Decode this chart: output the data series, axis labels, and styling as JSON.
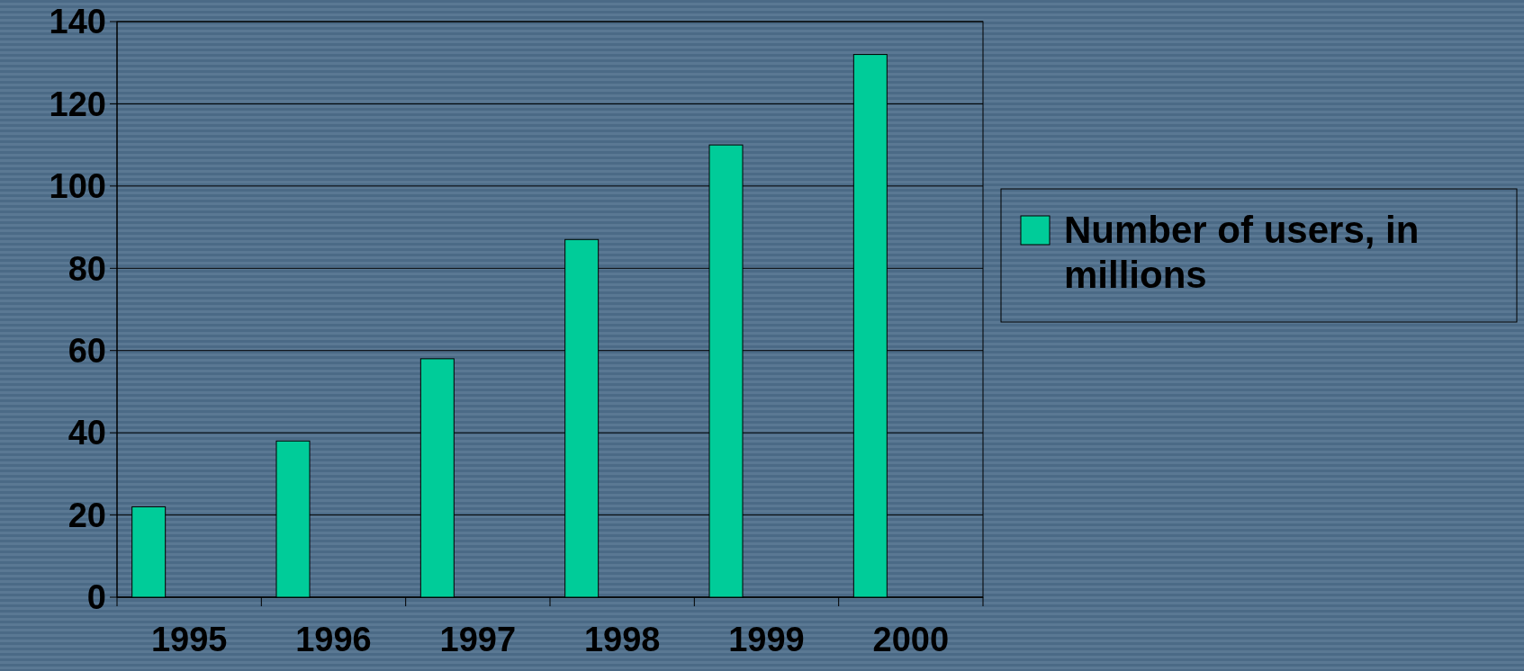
{
  "chart_data": {
    "type": "bar",
    "categories": [
      "1995",
      "1996",
      "1997",
      "1998",
      "1999",
      "2000"
    ],
    "series": [
      {
        "name": "Number of users, in millions",
        "color": "#00cc99",
        "values": [
          22,
          38,
          58,
          87,
          110,
          132
        ]
      }
    ],
    "ylim": [
      0,
      140
    ],
    "yticks": [
      0,
      20,
      40,
      60,
      80,
      100,
      120,
      140
    ],
    "grid": "y",
    "legend": "right"
  }
}
